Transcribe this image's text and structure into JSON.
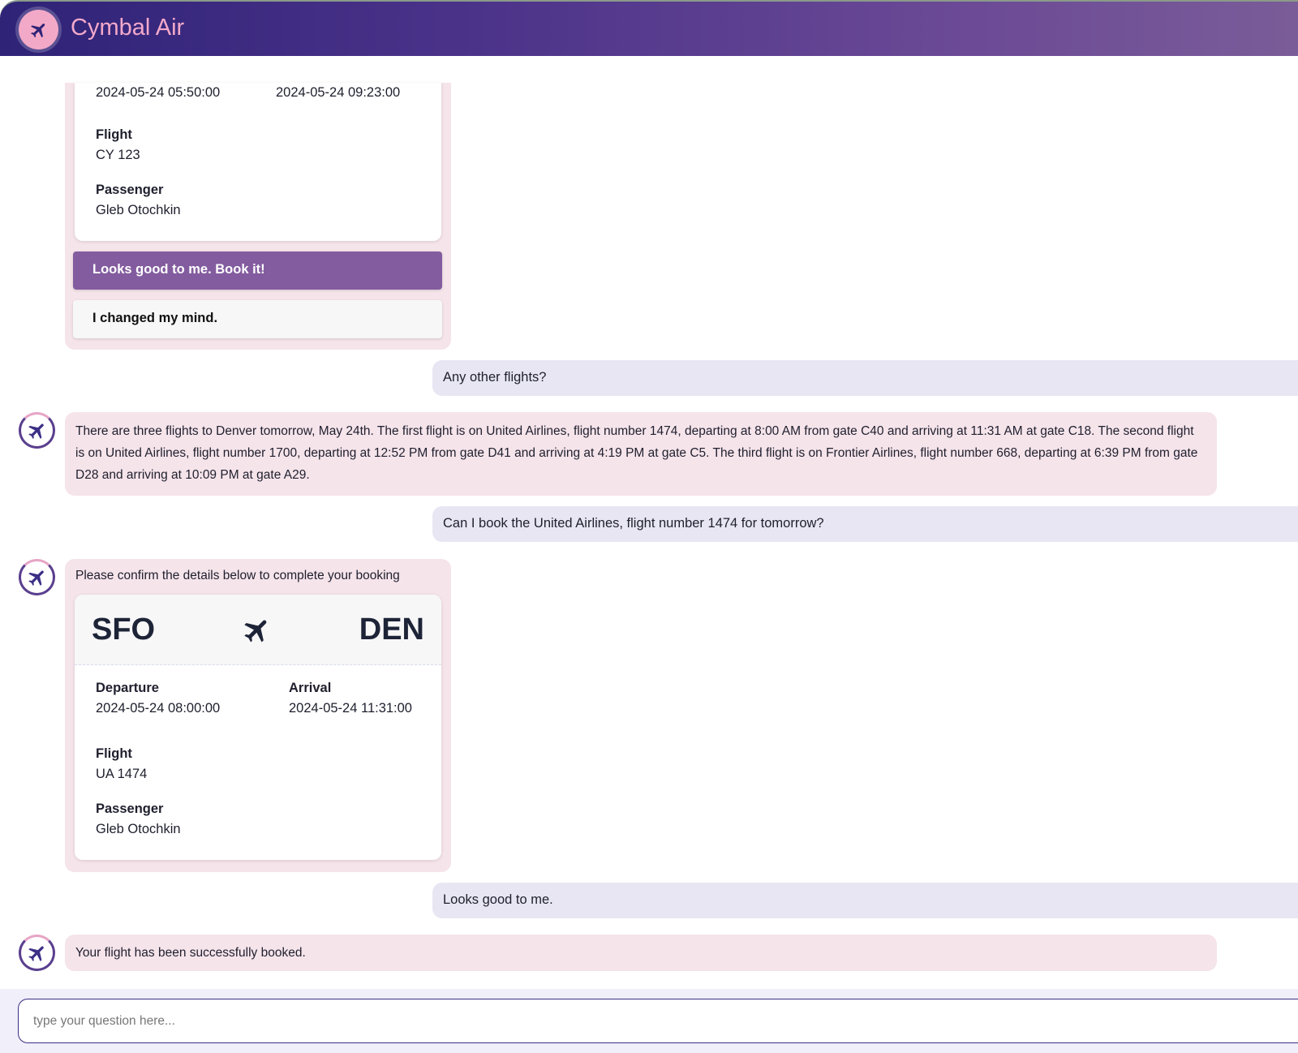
{
  "app": {
    "title": "Cymbal Air",
    "accent": "#4a3289",
    "logo_icon": "airplane-icon"
  },
  "messages": {
    "card1": {
      "departure_time": "2024-05-24 05:50:00",
      "arrival_time": "2024-05-24 09:23:00",
      "flight_label": "Flight",
      "flight": "CY 123",
      "passenger_label": "Passenger",
      "passenger": "Gleb Otochkin",
      "confirm_button": "Looks good to me. Book it!",
      "cancel_button": "I changed my mind."
    },
    "user1": "Any other flights?",
    "bot1": "There are three flights to Denver tomorrow, May 24th. The first flight is on United Airlines, flight number 1474, departing at 8:00 AM from gate C40 and arriving at 11:31 AM at gate C18. The second flight is on United Airlines, flight number 1700, departing at 12:52 PM from gate D41 and arriving at 4:19 PM at gate C5. The third flight is on Frontier Airlines, flight number 668, departing at 6:39 PM from gate D28 and arriving at 10:09 PM at gate A29.",
    "user2": "Can I book the United Airlines, flight number 1474 for tomorrow?",
    "bot2": {
      "intro": "Please confirm the details below to complete your booking",
      "origin": "SFO",
      "destination": "DEN",
      "departure_label": "Departure",
      "departure_time": "2024-05-24 08:00:00",
      "arrival_label": "Arrival",
      "arrival_time": "2024-05-24 11:31:00",
      "flight_label": "Flight",
      "flight": "UA 1474",
      "passenger_label": "Passenger",
      "passenger": "Gleb Otochkin"
    },
    "user3": "Looks good to me.",
    "bot3": "Your flight has been successfully booked."
  },
  "input": {
    "placeholder": "type your question here..."
  }
}
